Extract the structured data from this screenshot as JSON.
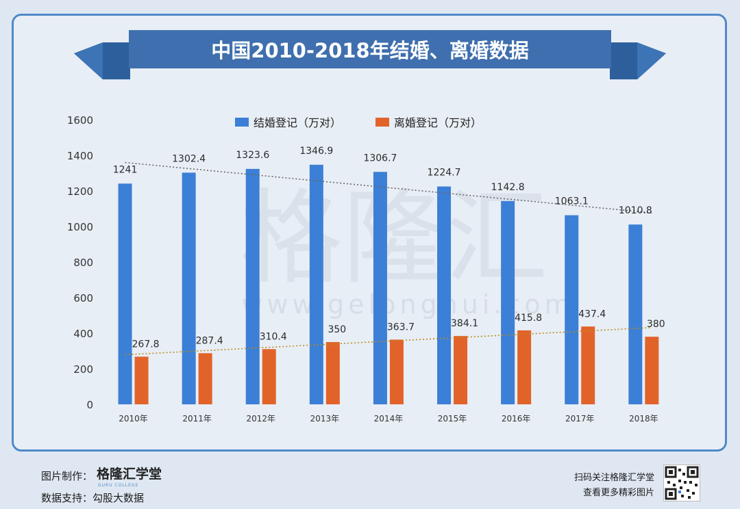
{
  "chart_data": {
    "type": "bar",
    "title": "中国2010-2018年结婚、离婚数据",
    "categories": [
      "2010年",
      "2011年",
      "2012年",
      "2013年",
      "2014年",
      "2015年",
      "2016年",
      "2017年",
      "2018年"
    ],
    "series": [
      {
        "name": "结婚登记（万对）",
        "color": "#3c7fd6",
        "values": [
          1241,
          1302.4,
          1323.6,
          1346.9,
          1306.7,
          1224.7,
          1142.8,
          1063.1,
          1010.8
        ]
      },
      {
        "name": "离婚登记（万对）",
        "color": "#e2632a",
        "values": [
          267.8,
          287.4,
          310.4,
          350,
          363.7,
          384.1,
          415.8,
          437.4,
          380
        ]
      }
    ],
    "data_labels": [
      [
        "1241",
        "1302.4",
        "1323.6",
        "1346.9",
        "1306.7",
        "1224.7",
        "1142.8",
        "1063.1",
        "1010.8"
      ],
      [
        "267.8",
        "287.4",
        "310.4",
        "350",
        "363.7",
        "384.1",
        "415.8",
        "437.4",
        "380"
      ]
    ],
    "yticks": [
      "0",
      "200",
      "400",
      "600",
      "800",
      "1000",
      "1200",
      "1400",
      "1600"
    ],
    "ylim": [
      0,
      1600
    ],
    "legend_position": "top",
    "trendlines": true,
    "grid": false,
    "watermark": [
      "格隆汇",
      "www.gelonghui.com"
    ]
  },
  "footer": {
    "made_by_label": "图片制作：",
    "brand": "格隆汇学堂",
    "brand_sub": "GURU COLLEGE",
    "data_support_label": "数据支持：",
    "data_support": "勾股大数据",
    "scan_line1": "扫码关注格隆汇学堂",
    "scan_line2": "查看更多精彩图片"
  }
}
